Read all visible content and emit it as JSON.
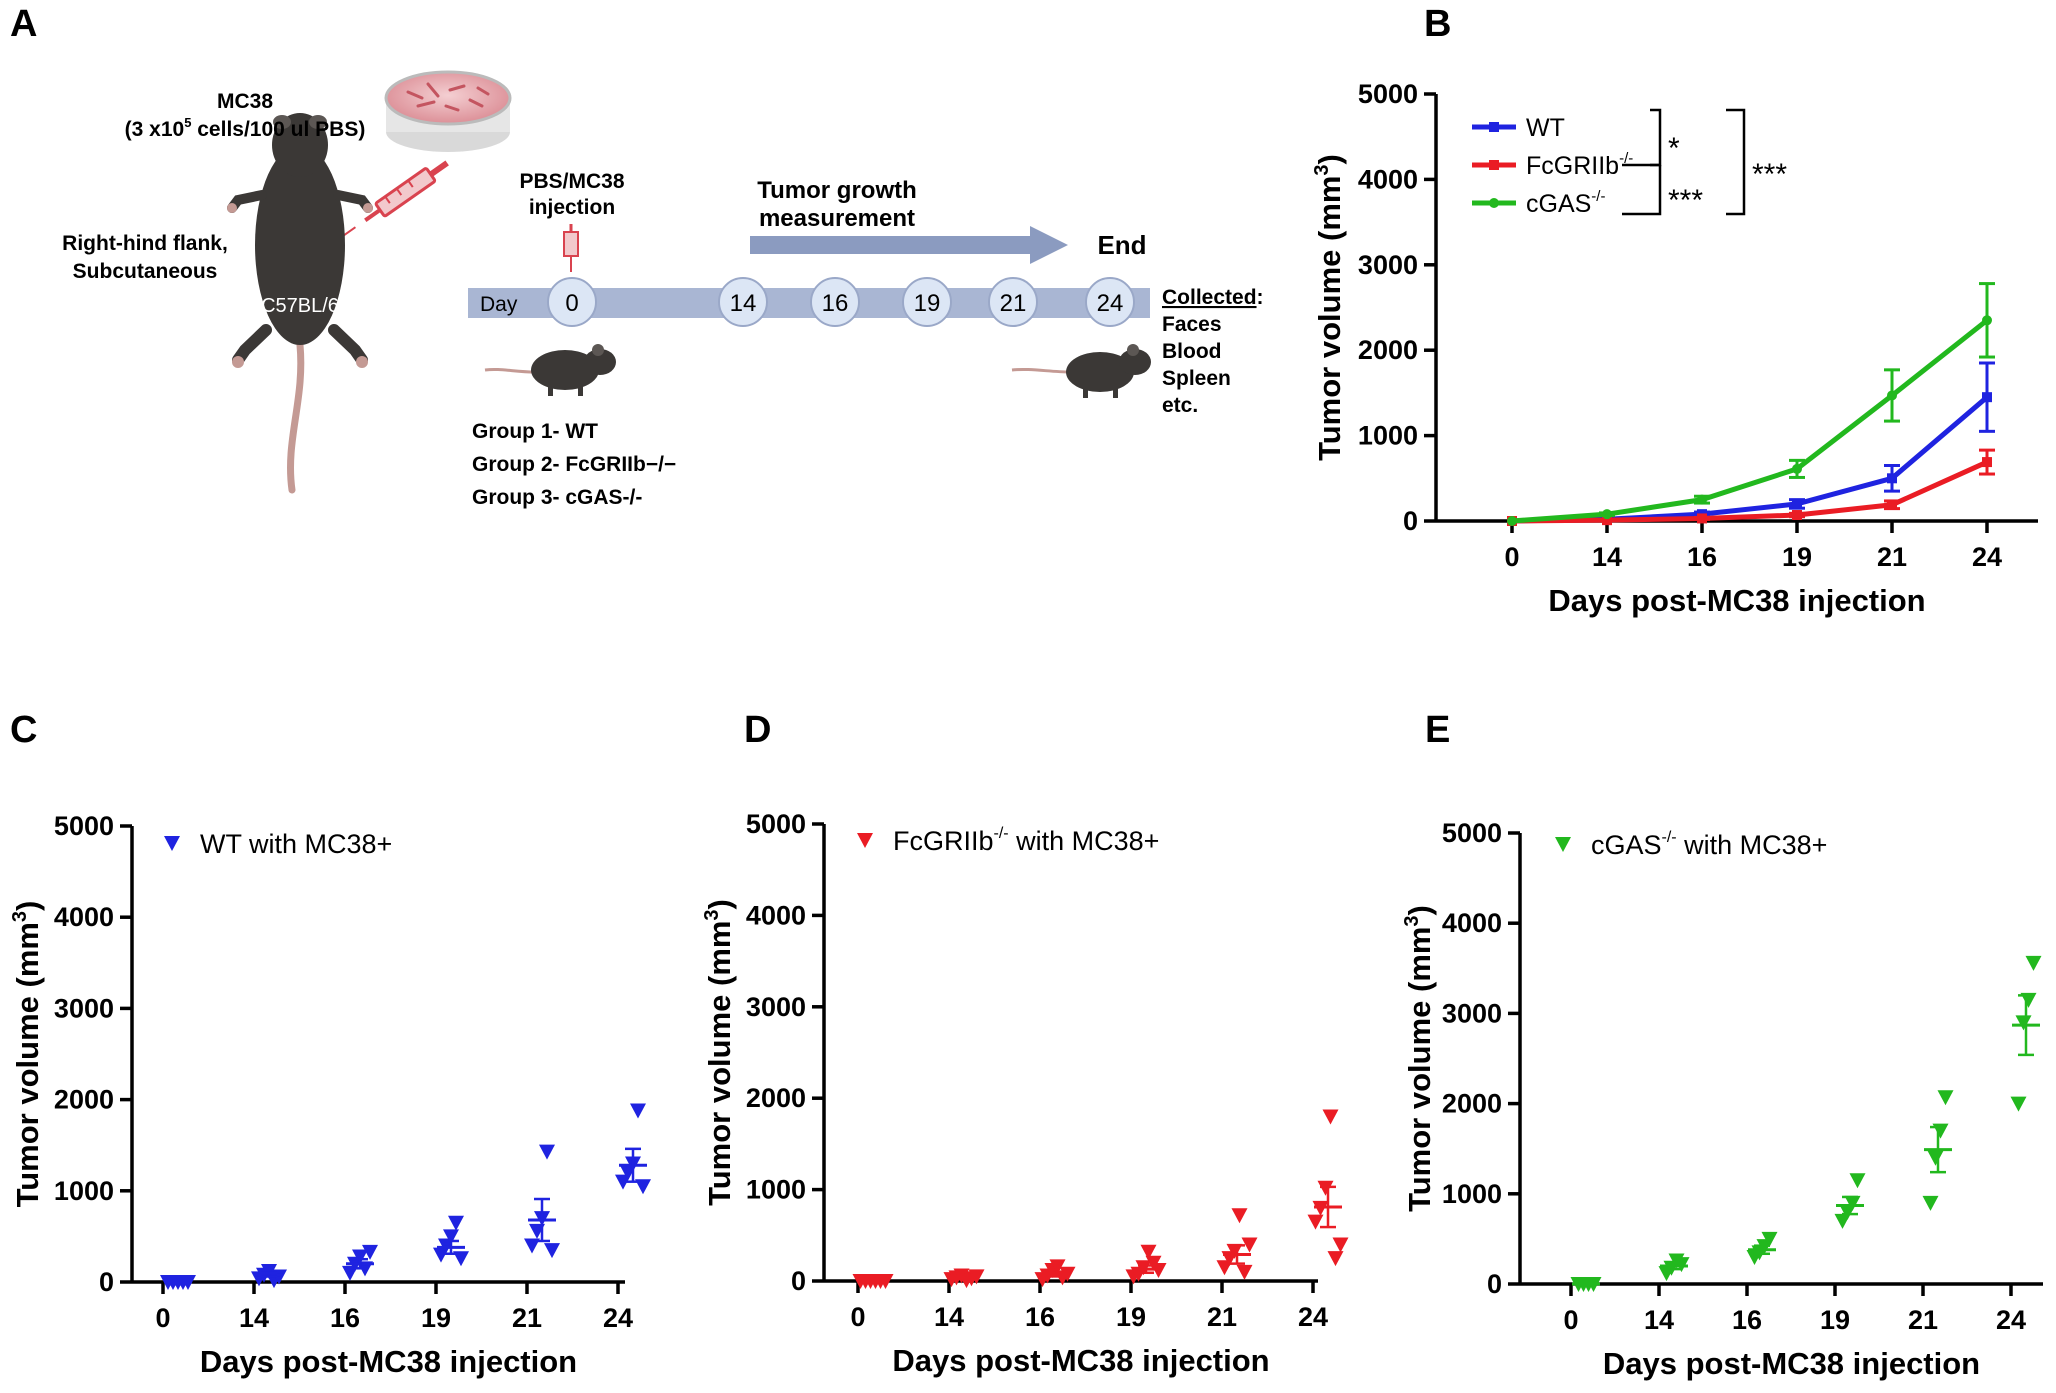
{
  "panels": {
    "A": "A",
    "B": "B",
    "C": "C",
    "D": "D",
    "E": "E"
  },
  "colors": {
    "wt": "#1f23e0",
    "fcgr": "#ea1c24",
    "cgas": "#22b81e",
    "timeline": "#a9b6d3",
    "timeline_circle": "#dce6f5",
    "arrow": "#8b9bc0",
    "mouse": "#3b3836",
    "tail": "#c49a94",
    "dish": "#e9b4b8"
  },
  "schematic": {
    "cells_line1": "MC38",
    "cells_line2_pre": "(3 x10",
    "cells_line2_sup": "5",
    "cells_line2_post": " cells/100 ul PBS)",
    "site_line1": "Right-hind flank,",
    "site_line2": "Subcutaneous",
    "strain": "C57BL/6",
    "injection_line1": "PBS/MC38",
    "injection_line2": "injection",
    "growth_line1": "Tumor growth",
    "growth_line2": "measurement",
    "end": "End",
    "day_label": "Day",
    "days": [
      "0",
      "14",
      "16",
      "19",
      "21",
      "24"
    ],
    "collected_title": "Collected",
    "collected_colon": ":",
    "collected_items": [
      "Faces",
      "Blood",
      "Spleen",
      "etc."
    ],
    "groups": [
      "Group 1- WT",
      "Group 2- FcGRIIb−/−",
      "Group 3- cGAS-/-"
    ]
  },
  "chart_data": [
    {
      "panel": "B",
      "type": "line",
      "categories": [
        "0",
        "14",
        "16",
        "19",
        "21",
        "24"
      ],
      "series": [
        {
          "name": "WT",
          "name_sup": "",
          "color_key": "wt",
          "marker": "square",
          "values": [
            0,
            20,
            80,
            200,
            500,
            1450
          ],
          "errors": [
            0,
            8,
            25,
            50,
            150,
            400
          ]
        },
        {
          "name": "FcGRIIb",
          "name_sup": "-/-",
          "color_key": "fcgr",
          "marker": "square",
          "values": [
            0,
            10,
            30,
            70,
            190,
            690
          ],
          "errors": [
            0,
            5,
            12,
            20,
            45,
            140
          ]
        },
        {
          "name": "cGAS",
          "name_sup": "-/-",
          "color_key": "cgas",
          "marker": "circle",
          "values": [
            0,
            80,
            250,
            610,
            1470,
            2350
          ],
          "errors": [
            0,
            15,
            40,
            100,
            300,
            430
          ]
        }
      ],
      "significance": [
        "*",
        "***",
        "***"
      ],
      "ylabel": "Tumor volume (mm",
      "ylabel_sup": "3",
      "ylabel_close": ")",
      "xlabel": "Days post-MC38 injection",
      "ylim": [
        0,
        5000
      ],
      "yticks": [
        0,
        1000,
        2000,
        3000,
        4000,
        5000
      ],
      "legend_position": "top-left"
    },
    {
      "panel": "C",
      "type": "scatter",
      "categories": [
        "0",
        "14",
        "16",
        "19",
        "21",
        "24"
      ],
      "legend": {
        "name": "WT",
        "sup": "",
        "suffix": " with MC38+"
      },
      "color_key": "wt",
      "control_means": [
        0,
        0,
        0,
        0,
        0,
        0
      ],
      "points": [
        [
          0,
          0,
          0,
          0,
          0
        ],
        [
          40,
          80,
          120,
          20,
          60
        ],
        [
          100,
          200,
          280,
          150,
          330
        ],
        [
          300,
          400,
          500,
          650,
          260
        ],
        [
          400,
          560,
          700,
          1430,
          350
        ],
        [
          1100,
          1200,
          1300,
          1880,
          1050
        ]
      ],
      "means": [
        0,
        80,
        200,
        380,
        680,
        1280
      ],
      "sems": [
        0,
        20,
        50,
        70,
        230,
        180
      ],
      "ylabel": "Tumor volume (mm",
      "ylabel_sup": "3",
      "ylabel_close": ")",
      "xlabel": "Days post-MC38 injection",
      "ylim": [
        0,
        5000
      ],
      "yticks": [
        0,
        1000,
        2000,
        3000,
        4000,
        5000
      ]
    },
    {
      "panel": "D",
      "type": "scatter",
      "categories": [
        "0",
        "14",
        "16",
        "19",
        "21",
        "24"
      ],
      "legend": {
        "name": "FcGRIIb",
        "sup": "-/-",
        "suffix": " with MC38+"
      },
      "color_key": "fcgr",
      "control_means": [
        0,
        0,
        0,
        0,
        0,
        0
      ],
      "points": [
        [
          0,
          0,
          0,
          0,
          0,
          0
        ],
        [
          20,
          40,
          60,
          10,
          30,
          50
        ],
        [
          20,
          60,
          120,
          160,
          40,
          80
        ],
        [
          50,
          80,
          150,
          320,
          200,
          120
        ],
        [
          150,
          250,
          330,
          720,
          100,
          400
        ],
        [
          650,
          800,
          1020,
          1800,
          250,
          400
        ]
      ],
      "means": [
        0,
        30,
        70,
        130,
        290,
        810
      ],
      "sems": [
        0,
        10,
        20,
        40,
        100,
        220
      ],
      "ylabel": "Tumor volume (mm",
      "ylabel_sup": "3",
      "ylabel_close": ")",
      "xlabel": "Days post-MC38 injection",
      "ylim": [
        0,
        5000
      ],
      "yticks": [
        0,
        1000,
        2000,
        3000,
        4000,
        5000
      ]
    },
    {
      "panel": "E",
      "type": "scatter",
      "categories": [
        "0",
        "14",
        "16",
        "19",
        "21",
        "24"
      ],
      "legend": {
        "name": "cGAS",
        "sup": "-/-",
        "suffix": " with MC38+"
      },
      "color_key": "cgas",
      "control_means": [
        0,
        0,
        0,
        0,
        0,
        0
      ],
      "points": [
        [
          0,
          0,
          0,
          0
        ],
        [
          120,
          180,
          260,
          220
        ],
        [
          300,
          350,
          420,
          500
        ],
        [
          700,
          800,
          900,
          1150
        ],
        [
          900,
          1400,
          1700,
          2070
        ],
        [
          2000,
          2900,
          3150,
          3560
        ]
      ],
      "means": [
        0,
        200,
        380,
        870,
        1490,
        2870
      ],
      "sems": [
        0,
        35,
        45,
        95,
        250,
        330
      ],
      "ylabel": "Tumor volume (mm",
      "ylabel_sup": "3",
      "ylabel_close": ")",
      "xlabel": "Days post-MC38 injection",
      "ylim": [
        0,
        5000
      ],
      "yticks": [
        0,
        1000,
        2000,
        3000,
        4000,
        5000
      ]
    }
  ]
}
